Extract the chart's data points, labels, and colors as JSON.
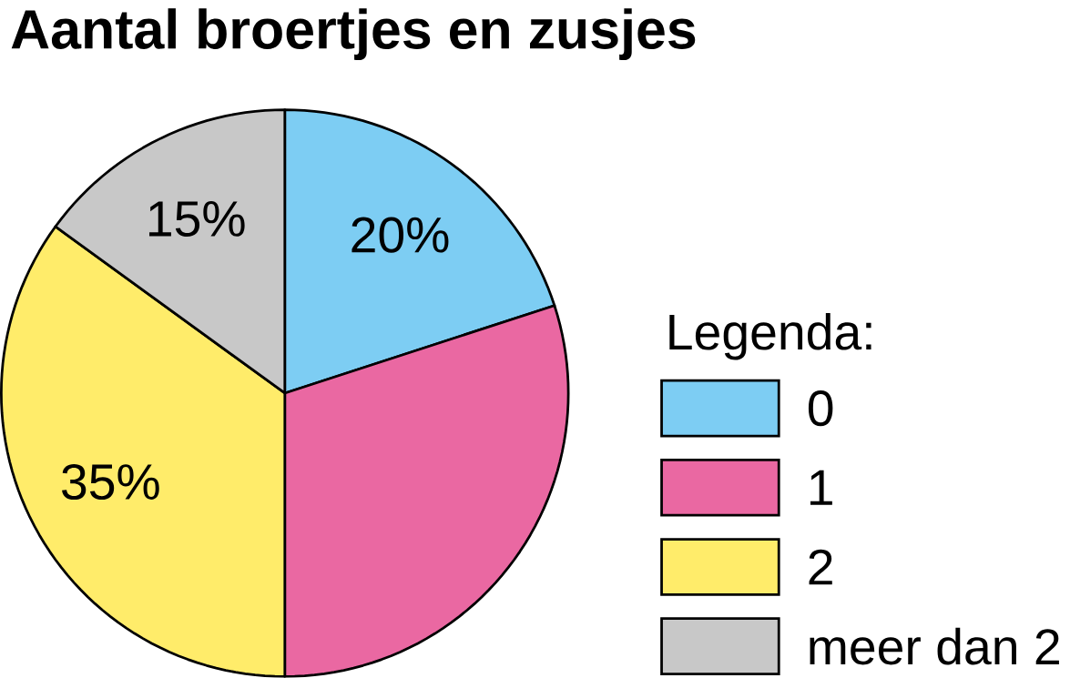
{
  "chart_data": {
    "type": "pie",
    "title": "Aantal broertjes en zusjes",
    "legend_title": "Legenda:",
    "categories": [
      "0",
      "1",
      "2",
      "meer dan 2"
    ],
    "values": [
      20,
      30,
      35,
      15
    ],
    "value_labels": [
      "20%",
      null,
      "35%",
      "15%"
    ],
    "colors": [
      "#7dcdf3",
      "#ea68a2",
      "#ffec6a",
      "#c8c8c8"
    ],
    "legend": "right"
  }
}
